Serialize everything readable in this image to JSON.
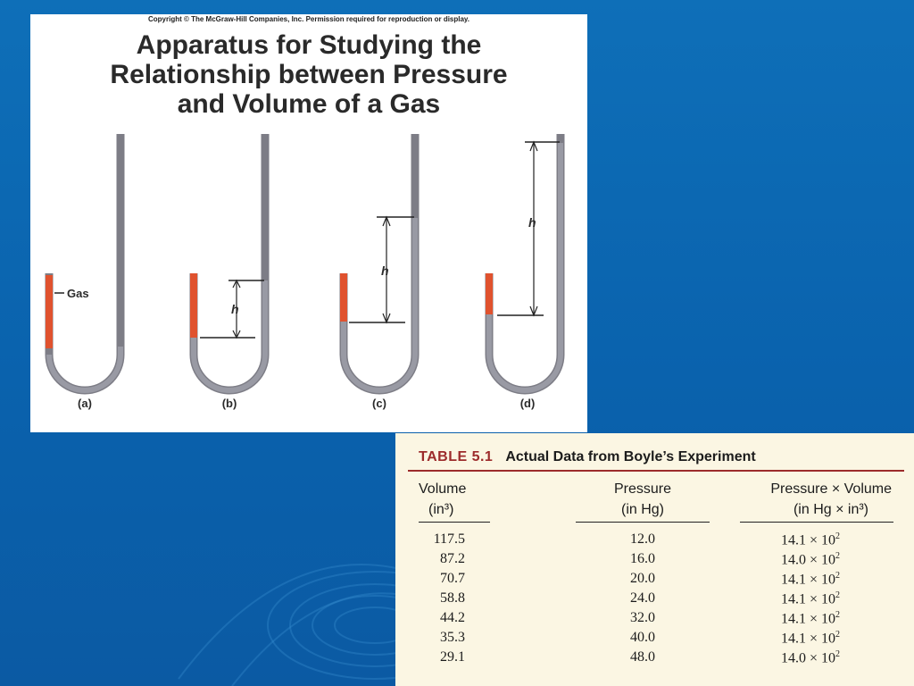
{
  "figure": {
    "copyright": "Copyright © The McGraw-Hill Companies, Inc. Permission required for reproduction or display.",
    "title_lines": [
      "Apparatus for Studying the",
      "Relationship between Pressure",
      "and Volume of a Gas"
    ],
    "gas_label": "Gas",
    "h_label": "h",
    "panel_labels": [
      "(a)",
      "(b)",
      "(c)",
      "(d)"
    ],
    "colors": {
      "gas": "#e0522e",
      "tube": "#a9a9b3",
      "background": "#0a62ad"
    }
  },
  "table": {
    "number": "TABLE 5.1",
    "title": "Actual Data from Boyle’s Experiment",
    "headers": {
      "volume": "Volume",
      "volume_unit": "(in³)",
      "pressure": "Pressure",
      "pressure_unit": "(in Hg)",
      "product": "Pressure × Volume",
      "product_unit": "(in Hg × in³)"
    },
    "rows": [
      {
        "volume": "117.5",
        "pressure": "12.0",
        "product": "14.1 × 10",
        "exp": "2"
      },
      {
        "volume": "87.2",
        "pressure": "16.0",
        "product": "14.0 × 10",
        "exp": "2"
      },
      {
        "volume": "70.7",
        "pressure": "20.0",
        "product": "14.1 × 10",
        "exp": "2"
      },
      {
        "volume": "58.8",
        "pressure": "24.0",
        "product": "14.1 × 10",
        "exp": "2"
      },
      {
        "volume": "44.2",
        "pressure": "32.0",
        "product": "14.1 × 10",
        "exp": "2"
      },
      {
        "volume": "35.3",
        "pressure": "40.0",
        "product": "14.1 × 10",
        "exp": "2"
      },
      {
        "volume": "29.1",
        "pressure": "48.0",
        "product": "14.0 × 10",
        "exp": "2"
      }
    ]
  }
}
